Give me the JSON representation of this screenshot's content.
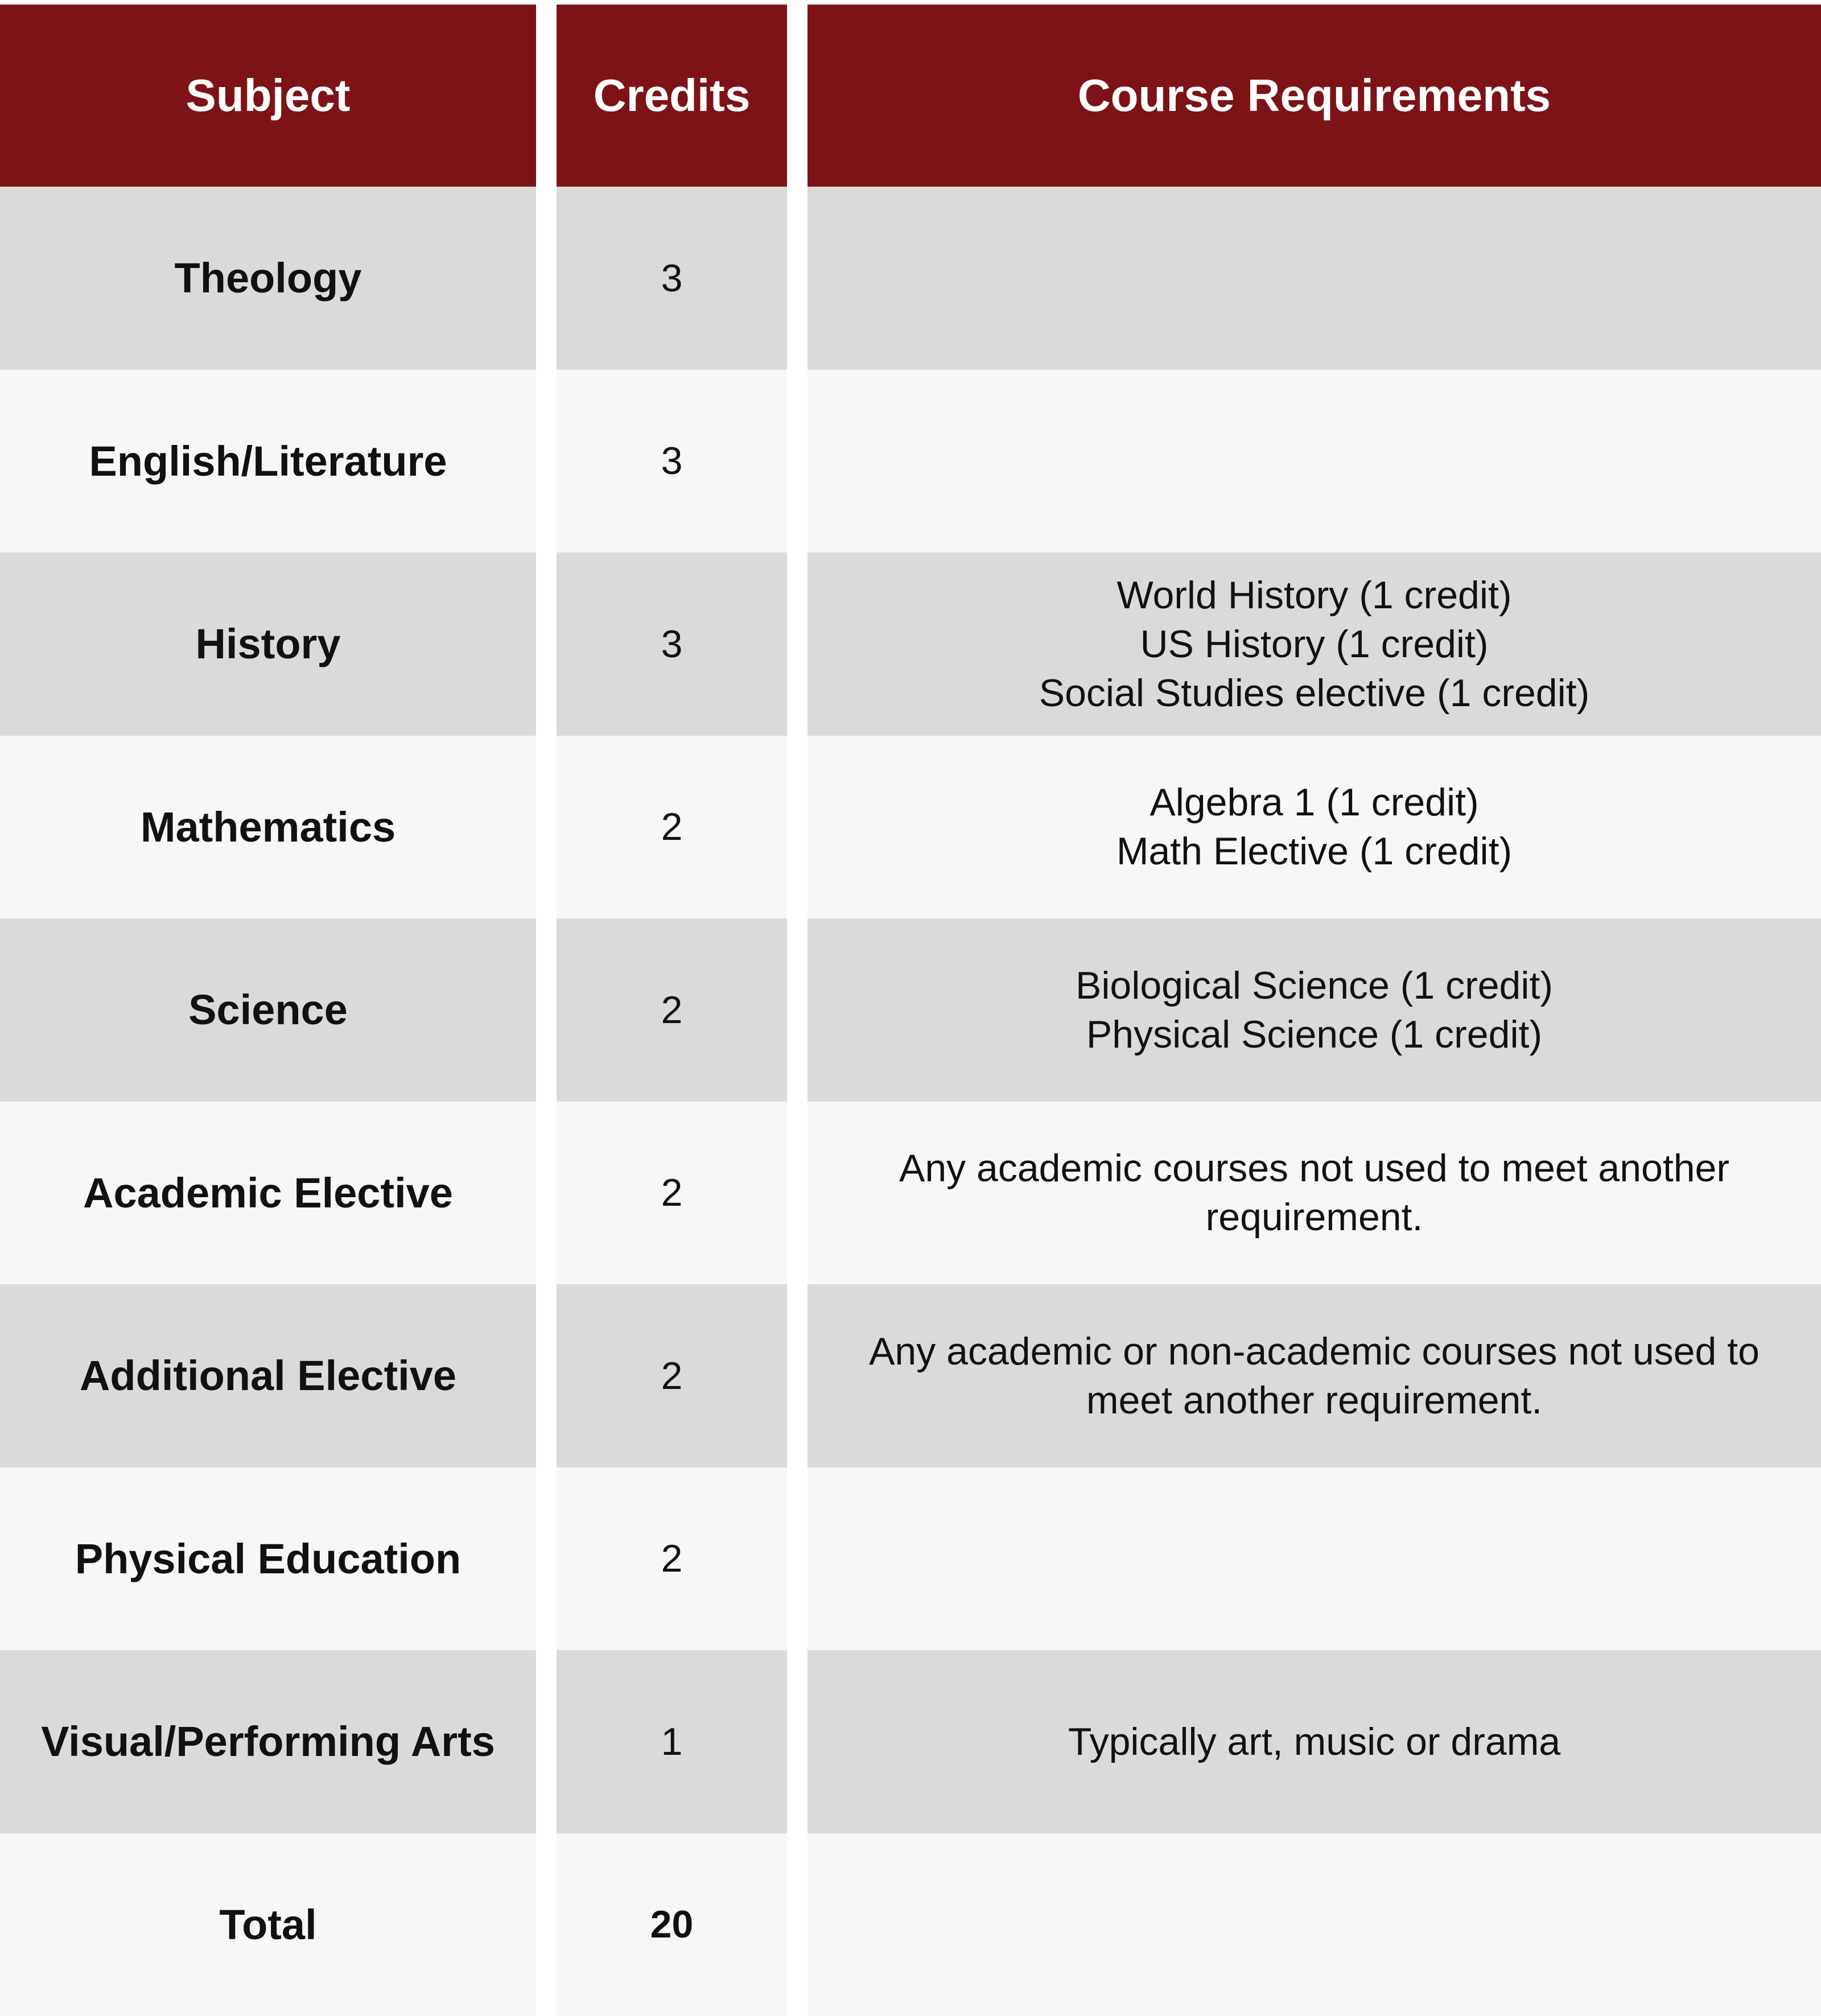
{
  "header": {
    "subject": "Subject",
    "credits": "Credits",
    "requirements": "Course Requirements"
  },
  "colors": {
    "header": "#7d1316",
    "row_dark": "#dadada",
    "row_light": "#f7f7f7"
  },
  "rows": [
    {
      "subject": "Theology",
      "credits": "3",
      "requirements": []
    },
    {
      "subject": "English/Literature",
      "credits": "3",
      "requirements": []
    },
    {
      "subject": "History",
      "credits": "3",
      "requirements": [
        "World History (1 credit)",
        "US History (1 credit)",
        "Social Studies elective (1 credit)"
      ]
    },
    {
      "subject": "Mathematics",
      "credits": "2",
      "requirements": [
        "Algebra 1 (1 credit)",
        "Math Elective (1 credit)"
      ]
    },
    {
      "subject": "Science",
      "credits": "2",
      "requirements": [
        "Biological Science (1 credit)",
        "Physical Science (1 credit)"
      ]
    },
    {
      "subject": "Academic Elective",
      "credits": "2",
      "requirements": [
        "Any academic courses not used to meet another requirement."
      ]
    },
    {
      "subject": "Additional Elective",
      "credits": "2",
      "requirements": [
        "Any academic or non-academic courses not used to meet another requirement."
      ]
    },
    {
      "subject": "Physical Education",
      "credits": "2",
      "requirements": []
    },
    {
      "subject": "Visual/Performing Arts",
      "credits": "1",
      "requirements": [
        "Typically art, music or drama"
      ]
    },
    {
      "subject": "Total",
      "credits": "20",
      "requirements": []
    }
  ]
}
